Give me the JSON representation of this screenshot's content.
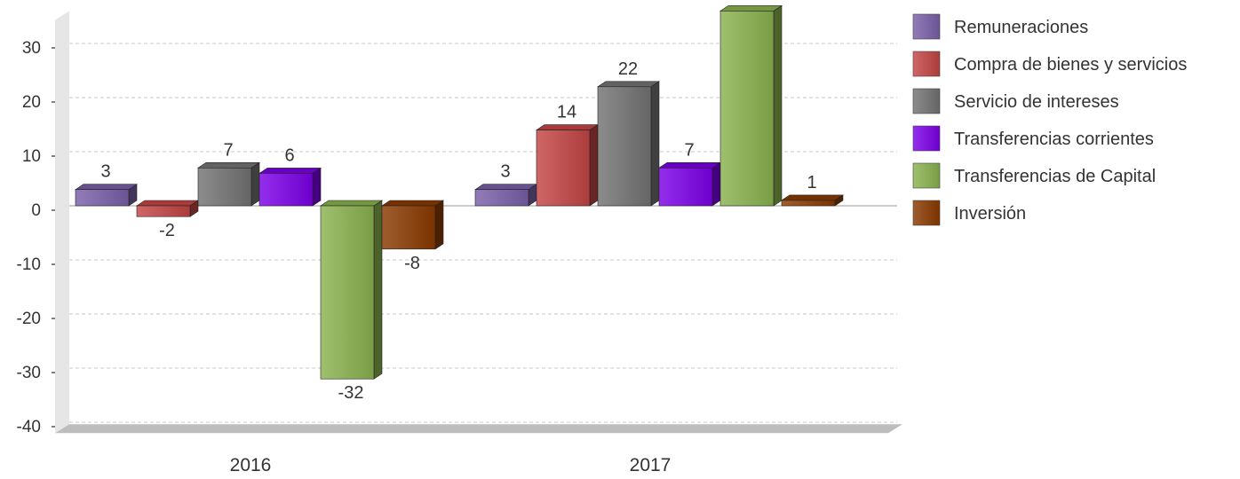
{
  "chart_data": {
    "type": "bar",
    "categories": [
      "2016",
      "2017"
    ],
    "series": [
      {
        "name": "Remuneraciones",
        "values": [
          3,
          3
        ],
        "color": "#7a5fa8"
      },
      {
        "name": "Compra de bienes y servicios",
        "values": [
          -2,
          14
        ],
        "color": "#c44444"
      },
      {
        "name": "Servicio de intereses",
        "values": [
          7,
          22
        ],
        "color": "#737373"
      },
      {
        "name": "Transferencias corrientes",
        "values": [
          6,
          7
        ],
        "color": "#7c00e8"
      },
      {
        "name": "Transferencias de Capital",
        "values": [
          -32,
          38
        ],
        "color": "#8ab24e"
      },
      {
        "name": "Inversión",
        "values": [
          -8,
          1
        ],
        "color": "#8a3a00"
      }
    ],
    "data_labels": [
      [
        "3",
        "3"
      ],
      [
        "-2",
        "14"
      ],
      [
        "7",
        "22"
      ],
      [
        "6",
        "7"
      ],
      [
        "-32",
        ""
      ],
      [
        "-8",
        "1"
      ]
    ],
    "yticks": [
      30,
      20,
      10,
      0,
      -10,
      -20,
      -30,
      -40
    ],
    "ylim": [
      -42,
      36
    ],
    "grid": true,
    "legend_position": "right",
    "title": "",
    "xlabel": "",
    "ylabel": ""
  }
}
